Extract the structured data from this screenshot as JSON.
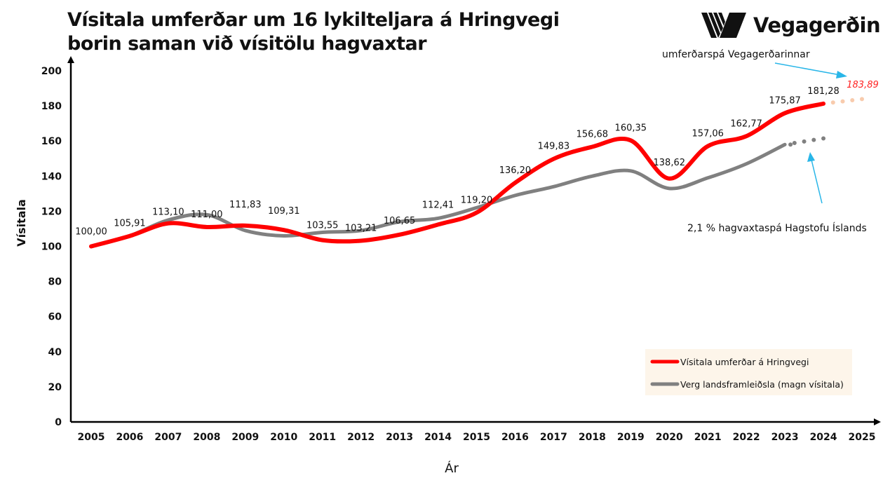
{
  "chart_data": {
    "type": "line",
    "title": "Vísitala umferðar um 16 lykilteljara á Hringvegi borin saman við vísitölu hagvaxtar",
    "title_lines": [
      "Vísitala umferðar um 16 lykilteljara á Hringvegi",
      "borin saman við vísitölu hagvaxtar"
    ],
    "xlabel": "Ár",
    "ylabel": "Vísitala",
    "ylim": [
      0,
      200
    ],
    "yticks": [
      0,
      20,
      40,
      60,
      80,
      100,
      120,
      140,
      160,
      180,
      200
    ],
    "x": [
      2005,
      2006,
      2007,
      2008,
      2009,
      2010,
      2011,
      2012,
      2013,
      2014,
      2015,
      2016,
      2017,
      2018,
      2019,
      2020,
      2021,
      2022,
      2023,
      2024,
      2025
    ],
    "grid": false,
    "legend_placement": "bottom-right",
    "series": [
      {
        "name": "Vísitala umferðar á Hringvegi",
        "color": "#ff0000",
        "x": [
          2005,
          2006,
          2007,
          2008,
          2009,
          2010,
          2011,
          2012,
          2013,
          2014,
          2015,
          2016,
          2017,
          2018,
          2019,
          2020,
          2021,
          2022,
          2023,
          2024
        ],
        "values": [
          100.0,
          105.91,
          113.1,
          111.0,
          111.83,
          109.31,
          103.55,
          103.21,
          106.65,
          112.41,
          119.2,
          136.2,
          149.83,
          156.68,
          160.35,
          138.62,
          157.06,
          162.77,
          175.87,
          181.28
        ],
        "labels": [
          "100,00",
          "105,91",
          "113,10",
          "111,00",
          "111,83",
          "109,31",
          "103,55",
          "103,21",
          "106,65",
          "112,41",
          "119,20",
          "136,20",
          "149,83",
          "156,68",
          "160,35",
          "138,62",
          "157,06",
          "162,77",
          "175,87",
          "181,28"
        ],
        "forecast": {
          "x": [
            2024,
            2025
          ],
          "values": [
            181.28,
            183.89
          ],
          "label": "183,89",
          "color": "#f8cbad",
          "label_color": "#ff2020"
        }
      },
      {
        "name": "Verg landsframleiðsla (magn vísitala)",
        "color": "#808080",
        "x": [
          2005,
          2006,
          2007,
          2008,
          2009,
          2010,
          2011,
          2012,
          2013,
          2014,
          2015,
          2016,
          2017,
          2018,
          2019,
          2020,
          2021,
          2022,
          2023
        ],
        "values": [
          100,
          106,
          115,
          118,
          109,
          106,
          108,
          109,
          114,
          116,
          122,
          129,
          134,
          140,
          143,
          133,
          139,
          147,
          158
        ],
        "forecast": {
          "x": [
            2023,
            2024
          ],
          "values": [
            158,
            161.5
          ],
          "color": "#808080"
        }
      }
    ],
    "annotations": [
      {
        "text": "umferðarspá Vegagerðarinnar",
        "arrow_color": "#29b6e8"
      },
      {
        "text": "2,1 % hagvaxtaspá Hagstofu Íslands",
        "arrow_color": "#29b6e8"
      }
    ],
    "legend_bg": "#fdf5ea"
  },
  "logo": {
    "text": "Vegagerðin"
  }
}
